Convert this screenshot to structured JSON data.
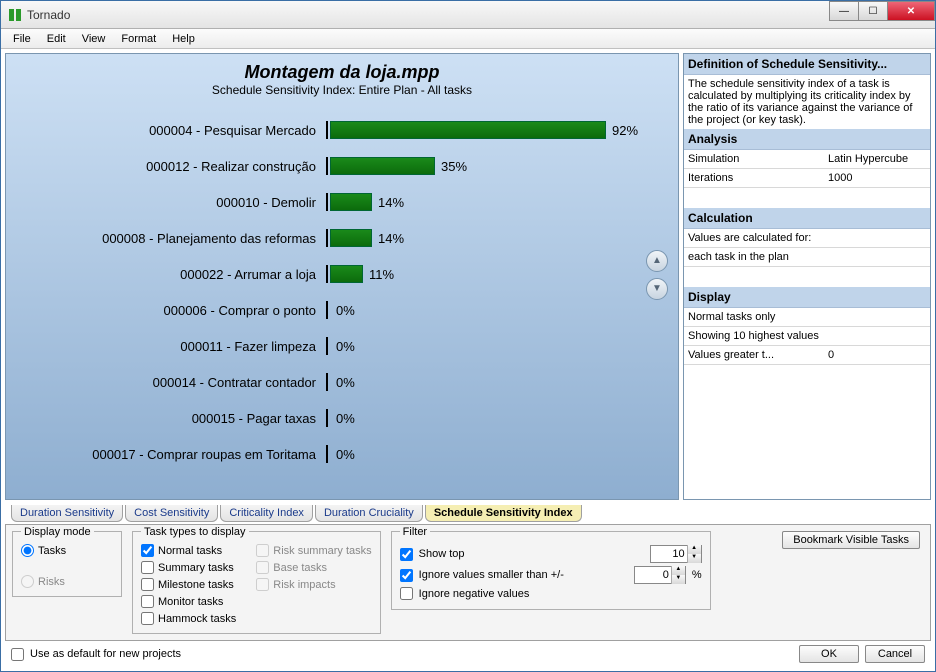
{
  "window": {
    "title": "Tornado"
  },
  "menu": {
    "file": "File",
    "edit": "Edit",
    "view": "View",
    "format": "Format",
    "help": "Help"
  },
  "chart": {
    "title": "Montagem da loja.mpp",
    "subtitle": "Schedule Sensitivity Index: Entire Plan - All tasks",
    "bar_color": "#0f7a10",
    "max_pct": 100,
    "rows": [
      {
        "label": "000004 - Pesquisar Mercado",
        "pct": 92,
        "display": "92%"
      },
      {
        "label": "000012 - Realizar construção",
        "pct": 35,
        "display": "35%"
      },
      {
        "label": "000010 - Demolir",
        "pct": 14,
        "display": "14%"
      },
      {
        "label": "000008 - Planejamento das reformas",
        "pct": 14,
        "display": "14%"
      },
      {
        "label": "000022 - Arrumar a loja",
        "pct": 11,
        "display": "11%"
      },
      {
        "label": "000006 - Comprar o ponto",
        "pct": 0,
        "display": "0%"
      },
      {
        "label": "000011 - Fazer limpeza",
        "pct": 0,
        "display": "0%"
      },
      {
        "label": "000014 - Contratar contador",
        "pct": 0,
        "display": "0%"
      },
      {
        "label": "000015 - Pagar taxas",
        "pct": 0,
        "display": "0%"
      },
      {
        "label": "000017 - Comprar roupas em Toritama",
        "pct": 0,
        "display": "0%"
      }
    ]
  },
  "side": {
    "definition": {
      "head": "Definition of Schedule Sensitivity...",
      "body": "The schedule sensitivity index of a task is calculated by multiplying its criticality index by the ratio of its variance against the variance of the project (or key task)."
    },
    "analysis": {
      "head": "Analysis",
      "simulation_k": "Simulation",
      "simulation_v": "Latin Hypercube",
      "iterations_k": "Iterations",
      "iterations_v": "1000"
    },
    "calculation": {
      "head": "Calculation",
      "line1": "Values are calculated for:",
      "line2": "each task in the plan"
    },
    "display": {
      "head": "Display",
      "line1": "Normal tasks only",
      "line2": "Showing 10 highest values",
      "gt_k": "Values greater t...",
      "gt_v": "0"
    }
  },
  "tabs": {
    "items": [
      "Duration Sensitivity",
      "Cost Sensitivity",
      "Criticality Index",
      "Duration Cruciality",
      "Schedule Sensitivity Index"
    ],
    "active_index": 4
  },
  "bottom": {
    "displaymode": {
      "legend": "Display mode",
      "tasks": "Tasks",
      "risks": "Risks",
      "selected": "tasks"
    },
    "tasktypes": {
      "legend": "Task types to display",
      "normal": {
        "label": "Normal tasks",
        "checked": true
      },
      "summary": {
        "label": "Summary tasks",
        "checked": false
      },
      "milestone": {
        "label": "Milestone tasks",
        "checked": false
      },
      "monitor": {
        "label": "Monitor tasks",
        "checked": false
      },
      "hammock": {
        "label": "Hammock tasks",
        "checked": false
      },
      "risksummary": {
        "label": "Risk summary tasks",
        "checked": false
      },
      "base": {
        "label": "Base tasks",
        "checked": false
      },
      "riskimpacts": {
        "label": "Risk impacts",
        "checked": false
      }
    },
    "filter": {
      "legend": "Filter",
      "showtop": {
        "label": "Show top",
        "checked": true,
        "value": "10"
      },
      "ignoresmaller": {
        "label": "Ignore values smaller than +/-",
        "checked": true,
        "value": "0",
        "suffix": "%"
      },
      "ignoreneg": {
        "label": "Ignore negative values",
        "checked": false
      }
    },
    "bookmark_btn": "Bookmark Visible Tasks",
    "default_checkbox": "Use as default for new projects",
    "ok": "OK",
    "cancel": "Cancel"
  }
}
